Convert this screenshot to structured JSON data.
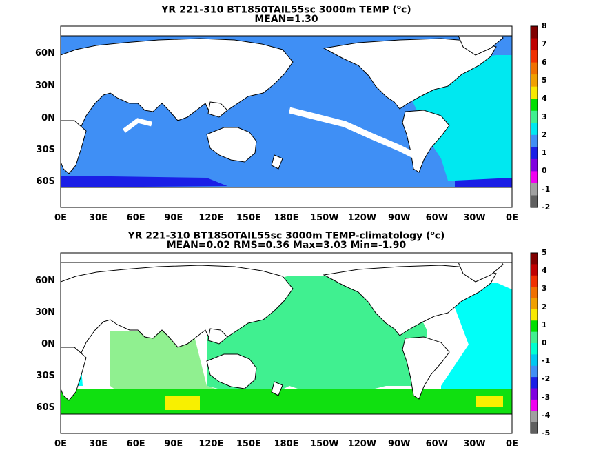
{
  "panels": [
    {
      "title": "YR 221-310 BT1850TAIL55sc 3000m TEMP (",
      "title_sup": "o",
      "title_tail": "c)",
      "subtitle": "MEAN=1.30",
      "colorbar_ticks": [
        "8",
        "7",
        "6",
        "5",
        "4",
        "3",
        "2",
        "1",
        "0",
        "-1",
        "-2"
      ]
    },
    {
      "title": "YR 221-310 BT1850TAIL55sc 3000m TEMP-climatology (",
      "title_sup": "o",
      "title_tail": "c)",
      "subtitle": "MEAN=0.02   RMS=0.36   Max=3.03   Min=-1.90",
      "colorbar_ticks": [
        "5",
        "4",
        "3",
        "2",
        "1",
        "0",
        "-1",
        "-2",
        "-3",
        "-4",
        "-5"
      ]
    }
  ],
  "lat_labels": [
    "60N",
    "30N",
    "0N",
    "30S",
    "60S"
  ],
  "lon_labels": [
    "0E",
    "30E",
    "60E",
    "90E",
    "120E",
    "150E",
    "180E",
    "150W",
    "120W",
    "90W",
    "60W",
    "30W",
    "0E"
  ],
  "colors": {
    "panel1_ocean": "#3f8ff5",
    "panel1_atlantic": "#00e8f0",
    "panel1_deep_south": "#1a1ee6",
    "panel1_arctic": "#f000f0",
    "panel2_pacific": "#40f090",
    "panel2_indian": "#90f090",
    "panel2_southern": "#10e010",
    "panel2_warm": "#f8f000",
    "panel2_atlantic": "#00fff8",
    "colorbar1": [
      "#800000",
      "#c00000",
      "#f03000",
      "#f07000",
      "#f0a000",
      "#f8e800",
      "#00e000",
      "#40f090",
      "#00e8f0",
      "#3f8ff5",
      "#1a1ee6",
      "#8000e0",
      "#f000f0",
      "#a0a0a0",
      "#606060"
    ],
    "colorbar2": [
      "#800000",
      "#c00000",
      "#f03000",
      "#f07000",
      "#f0a000",
      "#f8e800",
      "#00e000",
      "#40f090",
      "#00ffd0",
      "#00c8f0",
      "#3f8ff5",
      "#1a1ee6",
      "#8000e0",
      "#f000f0",
      "#a0a0a0",
      "#606060"
    ]
  }
}
